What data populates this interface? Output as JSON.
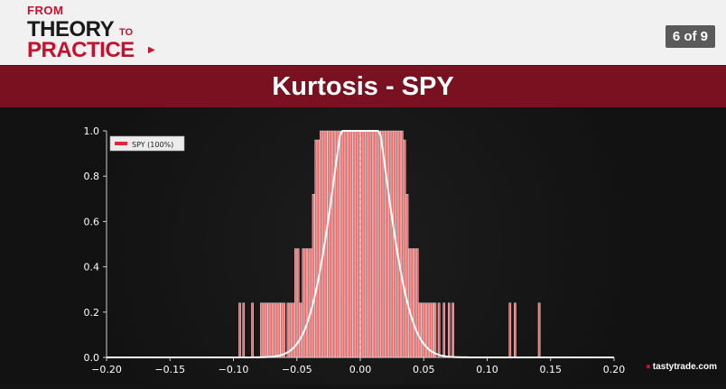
{
  "header": {
    "logo_line1": "FROM",
    "logo_line2": "THEORY",
    "logo_to": "TO",
    "logo_line3": "PRACTICE",
    "page_indicator": "6 of 9"
  },
  "title": "Kurtosis - SPY",
  "brand": {
    "cherry_icon": "cherry-icon",
    "text": "tastytrade.com"
  },
  "colors": {
    "accent": "#c8102e",
    "title_bar": "#7a1120",
    "bar_fill": "#f16a6a",
    "curve": "#ffffff",
    "background": "#141414"
  },
  "chart_data": {
    "type": "bar",
    "title": "",
    "xlabel": "",
    "ylabel": "",
    "xlim": [
      -0.2,
      0.2
    ],
    "ylim": [
      0.0,
      1.0
    ],
    "x_ticks": [
      "−0.20",
      "−0.15",
      "−0.10",
      "−0.05",
      "0.00",
      "0.05",
      "0.10",
      "0.15",
      "0.20"
    ],
    "y_ticks": [
      "0.0",
      "0.2",
      "0.4",
      "0.6",
      "0.8",
      "1.0"
    ],
    "legend": {
      "label": "SPY (100%)",
      "placement": "top-left"
    },
    "series": [
      {
        "name": "SPY (100%)",
        "x": [
          -0.095,
          -0.092,
          -0.085,
          -0.078,
          -0.076,
          -0.074,
          -0.072,
          -0.07,
          -0.068,
          -0.066,
          -0.064,
          -0.062,
          -0.06,
          -0.057,
          -0.055,
          -0.053,
          -0.051,
          -0.049,
          -0.047,
          -0.045,
          -0.043,
          -0.041,
          -0.039,
          -0.037,
          -0.035,
          -0.033,
          -0.031,
          -0.029,
          -0.027,
          -0.025,
          -0.023,
          -0.021,
          -0.019,
          -0.017,
          -0.015,
          -0.013,
          -0.011,
          -0.009,
          -0.007,
          -0.005,
          -0.003,
          -0.001,
          0.001,
          0.003,
          0.005,
          0.007,
          0.009,
          0.011,
          0.013,
          0.015,
          0.017,
          0.019,
          0.021,
          0.023,
          0.025,
          0.027,
          0.029,
          0.031,
          0.033,
          0.035,
          0.037,
          0.039,
          0.041,
          0.043,
          0.045,
          0.047,
          0.049,
          0.051,
          0.053,
          0.055,
          0.057,
          0.059,
          0.062,
          0.066,
          0.07,
          0.073,
          0.118,
          0.122,
          0.141
        ],
        "values": [
          0.24,
          0.24,
          0.24,
          0.24,
          0.24,
          0.24,
          0.24,
          0.24,
          0.24,
          0.24,
          0.24,
          0.24,
          0.24,
          0.24,
          0.24,
          0.24,
          0.48,
          0.48,
          0.24,
          0.48,
          0.48,
          0.48,
          0.48,
          0.72,
          0.96,
          0.96,
          1.0,
          1.0,
          1.0,
          1.0,
          1.0,
          1.0,
          1.0,
          1.0,
          1.0,
          1.0,
          1.0,
          1.0,
          1.0,
          1.0,
          1.0,
          1.0,
          1.0,
          1.0,
          1.0,
          1.0,
          1.0,
          1.0,
          1.0,
          1.0,
          1.0,
          1.0,
          1.0,
          1.0,
          1.0,
          1.0,
          1.0,
          1.0,
          1.0,
          0.96,
          0.72,
          0.48,
          0.48,
          0.48,
          0.48,
          0.24,
          0.24,
          0.24,
          0.24,
          0.24,
          0.24,
          0.24,
          0.24,
          0.24,
          0.24,
          0.24,
          0.24,
          0.24,
          0.24
        ]
      }
    ],
    "curve": {
      "name": "normal fit",
      "mean": 0.0,
      "sd": 0.02,
      "peak": 1.0
    },
    "median_line_x": 0.0,
    "grid": false
  }
}
